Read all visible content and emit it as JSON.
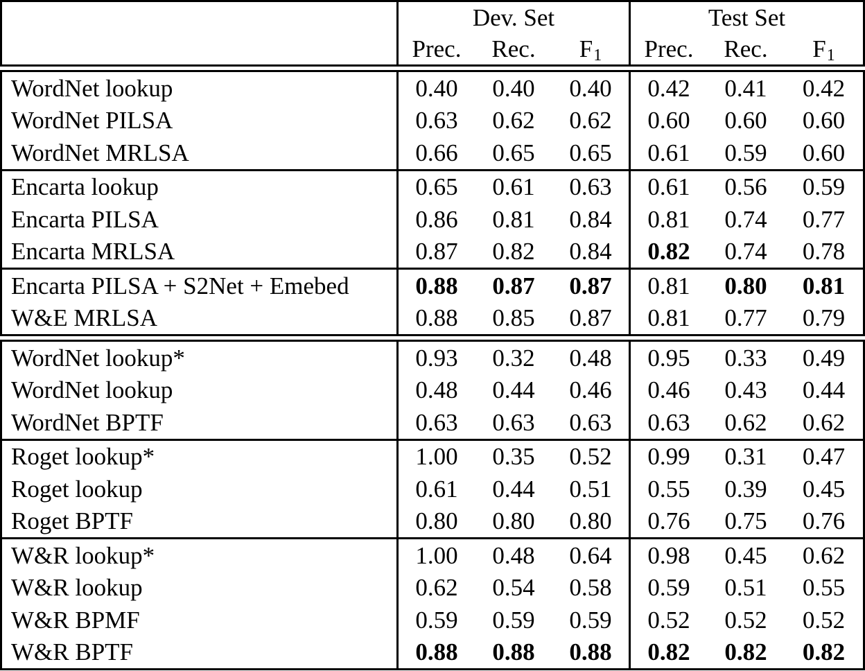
{
  "table": {
    "header": {
      "dev_set": "Dev. Set",
      "test_set": "Test Set",
      "prec": "Prec.",
      "rec": "Rec.",
      "f_base": "F",
      "f_sub": "1"
    },
    "colors": {
      "text": "#000000",
      "border": "#000000",
      "background": "#ffffff"
    },
    "blocks": [
      {
        "sections": [
          {
            "rows": [
              {
                "label": "WordNet lookup",
                "values": [
                  "0.40",
                  "0.40",
                  "0.40",
                  "0.42",
                  "0.41",
                  "0.42"
                ],
                "bold": [
                  false,
                  false,
                  false,
                  false,
                  false,
                  false
                ]
              },
              {
                "label": "WordNet PILSA",
                "values": [
                  "0.63",
                  "0.62",
                  "0.62",
                  "0.60",
                  "0.60",
                  "0.60"
                ],
                "bold": [
                  false,
                  false,
                  false,
                  false,
                  false,
                  false
                ]
              },
              {
                "label": "WordNet MRLSA",
                "values": [
                  "0.66",
                  "0.65",
                  "0.65",
                  "0.61",
                  "0.59",
                  "0.60"
                ],
                "bold": [
                  false,
                  false,
                  false,
                  false,
                  false,
                  false
                ]
              }
            ]
          },
          {
            "rows": [
              {
                "label": "Encarta lookup",
                "values": [
                  "0.65",
                  "0.61",
                  "0.63",
                  "0.61",
                  "0.56",
                  "0.59"
                ],
                "bold": [
                  false,
                  false,
                  false,
                  false,
                  false,
                  false
                ]
              },
              {
                "label": "Encarta PILSA",
                "values": [
                  "0.86",
                  "0.81",
                  "0.84",
                  "0.81",
                  "0.74",
                  "0.77"
                ],
                "bold": [
                  false,
                  false,
                  false,
                  false,
                  false,
                  false
                ]
              },
              {
                "label": "Encarta MRLSA",
                "values": [
                  "0.87",
                  "0.82",
                  "0.84",
                  "0.82",
                  "0.74",
                  "0.78"
                ],
                "bold": [
                  false,
                  false,
                  false,
                  true,
                  false,
                  false
                ]
              }
            ]
          },
          {
            "rows": [
              {
                "label": "Encarta PILSA + S2Net + Emebed",
                "values": [
                  "0.88",
                  "0.87",
                  "0.87",
                  "0.81",
                  "0.80",
                  "0.81"
                ],
                "bold": [
                  true,
                  true,
                  true,
                  false,
                  true,
                  true
                ]
              },
              {
                "label": "W&E MRLSA",
                "values": [
                  "0.88",
                  "0.85",
                  "0.87",
                  "0.81",
                  "0.77",
                  "0.79"
                ],
                "bold": [
                  false,
                  false,
                  false,
                  false,
                  false,
                  false
                ]
              }
            ]
          }
        ]
      },
      {
        "sections": [
          {
            "rows": [
              {
                "label": "WordNet lookup*",
                "values": [
                  "0.93",
                  "0.32",
                  "0.48",
                  "0.95",
                  "0.33",
                  "0.49"
                ],
                "bold": [
                  false,
                  false,
                  false,
                  false,
                  false,
                  false
                ]
              },
              {
                "label": "WordNet lookup",
                "values": [
                  "0.48",
                  "0.44",
                  "0.46",
                  "0.46",
                  "0.43",
                  "0.44"
                ],
                "bold": [
                  false,
                  false,
                  false,
                  false,
                  false,
                  false
                ]
              },
              {
                "label": "WordNet BPTF",
                "values": [
                  "0.63",
                  "0.63",
                  "0.63",
                  "0.63",
                  "0.62",
                  "0.62"
                ],
                "bold": [
                  false,
                  false,
                  false,
                  false,
                  false,
                  false
                ]
              }
            ]
          },
          {
            "rows": [
              {
                "label": "Roget lookup*",
                "values": [
                  "1.00",
                  "0.35",
                  "0.52",
                  "0.99",
                  "0.31",
                  "0.47"
                ],
                "bold": [
                  false,
                  false,
                  false,
                  false,
                  false,
                  false
                ]
              },
              {
                "label": "Roget lookup",
                "values": [
                  "0.61",
                  "0.44",
                  "0.51",
                  "0.55",
                  "0.39",
                  "0.45"
                ],
                "bold": [
                  false,
                  false,
                  false,
                  false,
                  false,
                  false
                ]
              },
              {
                "label": "Roget BPTF",
                "values": [
                  "0.80",
                  "0.80",
                  "0.80",
                  "0.76",
                  "0.75",
                  "0.76"
                ],
                "bold": [
                  false,
                  false,
                  false,
                  false,
                  false,
                  false
                ]
              }
            ]
          },
          {
            "rows": [
              {
                "label": "W&R lookup*",
                "values": [
                  "1.00",
                  "0.48",
                  "0.64",
                  "0.98",
                  "0.45",
                  "0.62"
                ],
                "bold": [
                  false,
                  false,
                  false,
                  false,
                  false,
                  false
                ]
              },
              {
                "label": "W&R lookup",
                "values": [
                  "0.62",
                  "0.54",
                  "0.58",
                  "0.59",
                  "0.51",
                  "0.55"
                ],
                "bold": [
                  false,
                  false,
                  false,
                  false,
                  false,
                  false
                ]
              },
              {
                "label": "W&R BPMF",
                "values": [
                  "0.59",
                  "0.59",
                  "0.59",
                  "0.52",
                  "0.52",
                  "0.52"
                ],
                "bold": [
                  false,
                  false,
                  false,
                  false,
                  false,
                  false
                ]
              },
              {
                "label": "W&R BPTF",
                "values": [
                  "0.88",
                  "0.88",
                  "0.88",
                  "0.82",
                  "0.82",
                  "0.82"
                ],
                "bold": [
                  true,
                  true,
                  true,
                  true,
                  true,
                  true
                ]
              }
            ]
          }
        ]
      }
    ]
  }
}
